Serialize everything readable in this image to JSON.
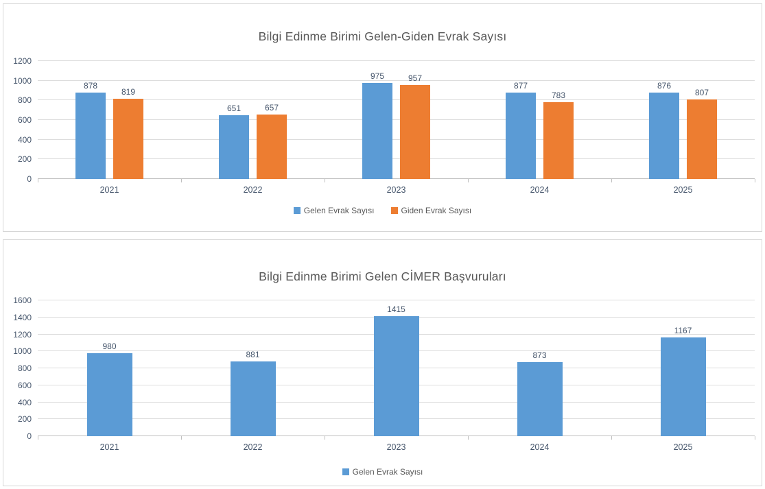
{
  "page": {
    "background": "#ffffff",
    "panel_border": "#d6d6d6"
  },
  "colors": {
    "series_blue": "#5B9BD5",
    "series_orange": "#ED7D31",
    "axis_text": "#44546A",
    "title_text": "#595959",
    "gridline": "#dcdcdc"
  },
  "chart_data": [
    {
      "type": "bar",
      "title": "Bilgi Edinme Birimi Gelen-Giden Evrak Sayısı",
      "categories": [
        "2021",
        "2022",
        "2023",
        "2024",
        "2025"
      ],
      "series": [
        {
          "name": "Gelen Evrak Sayısı",
          "color": "#5B9BD5",
          "values": [
            878,
            651,
            975,
            877,
            876
          ]
        },
        {
          "name": "Giden Evrak Sayısı",
          "color": "#ED7D31",
          "values": [
            819,
            657,
            957,
            783,
            807
          ]
        }
      ],
      "ylim": [
        0,
        1200
      ],
      "yticks": [
        0,
        200,
        400,
        600,
        800,
        1000,
        1200
      ],
      "grid": true,
      "data_labels": true,
      "legend_position": "bottom",
      "xlabel": "",
      "ylabel": ""
    },
    {
      "type": "bar",
      "title": "Bilgi Edinme Birimi Gelen CİMER Başvuruları",
      "categories": [
        "2021",
        "2022",
        "2023",
        "2024",
        "2025"
      ],
      "series": [
        {
          "name": "Gelen Evrak Sayısı",
          "color": "#5B9BD5",
          "values": [
            980,
            881,
            1415,
            873,
            1167
          ]
        }
      ],
      "ylim": [
        0,
        1600
      ],
      "yticks": [
        0,
        200,
        400,
        600,
        800,
        1000,
        1200,
        1400,
        1600
      ],
      "grid": true,
      "data_labels": true,
      "legend_position": "bottom",
      "xlabel": "",
      "ylabel": ""
    }
  ]
}
